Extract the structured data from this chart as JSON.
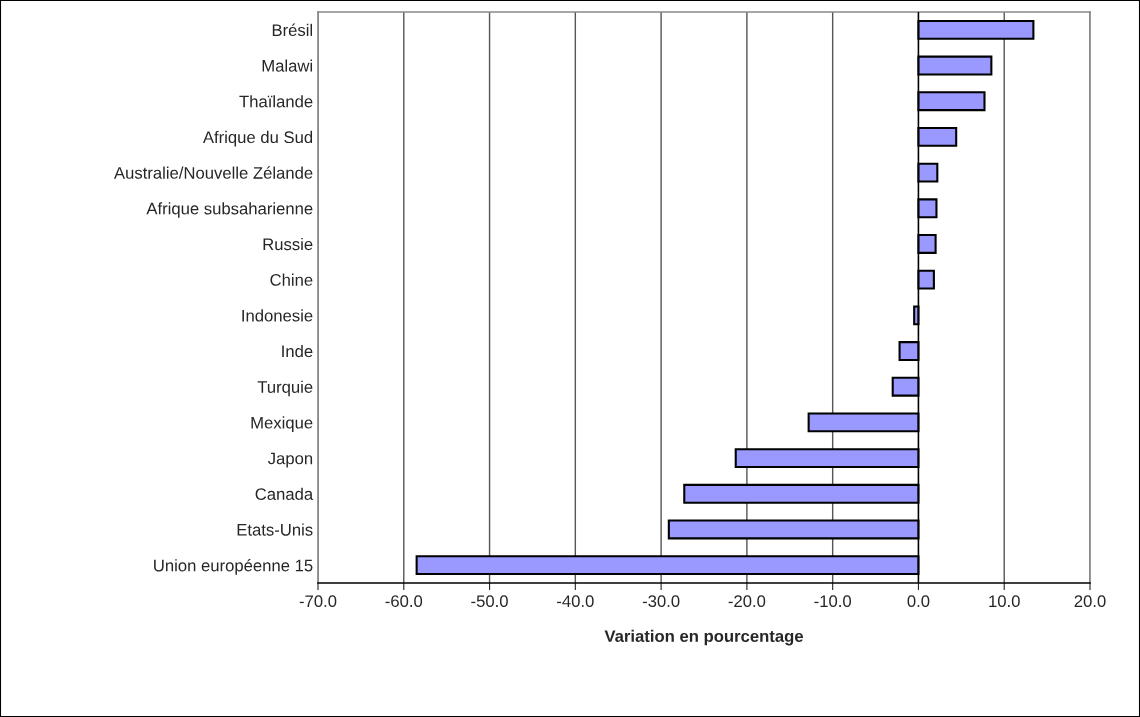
{
  "chart_data": {
    "type": "bar",
    "orientation": "horizontal",
    "xlabel": "Variation en pourcentage",
    "categories": [
      "Brésil",
      "Malawi",
      "Thaïlande",
      "Afrique du Sud",
      "Australie/Nouvelle Zélande",
      "Afrique subsaharienne",
      "Russie",
      "Chine",
      "Indonesie",
      "Inde",
      "Turquie",
      "Mexique",
      "Japon",
      "Canada",
      "Etats-Unis",
      "Union européenne 15"
    ],
    "values": [
      13.4,
      8.5,
      7.7,
      4.4,
      2.2,
      2.1,
      2.0,
      1.8,
      -0.5,
      -2.2,
      -3.0,
      -12.8,
      -21.3,
      -27.3,
      -29.1,
      -58.5
    ],
    "color": "#9999ff",
    "xlim": [
      -70,
      20
    ],
    "xticks": [
      {
        "value": -70,
        "label": "-70.0"
      },
      {
        "value": -60,
        "label": "-60.0"
      },
      {
        "value": -50,
        "label": "-50.0"
      },
      {
        "value": -40,
        "label": "-40.0"
      },
      {
        "value": -30,
        "label": "-30.0"
      },
      {
        "value": -20,
        "label": "-20.0"
      },
      {
        "value": -10,
        "label": "-10.0"
      },
      {
        "value": 0,
        "label": "0.0"
      },
      {
        "value": 10,
        "label": "10.0"
      },
      {
        "value": 20,
        "label": "20.0"
      }
    ],
    "grid": "x",
    "legend": false
  }
}
